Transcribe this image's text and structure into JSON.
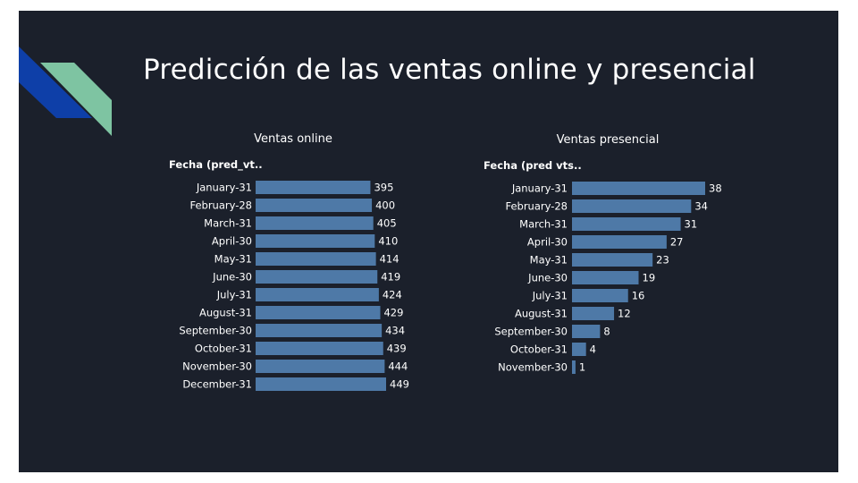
{
  "slide": {
    "title": "Predicción de las ventas online y presencial"
  },
  "colors": {
    "background": "#1b202b",
    "bar": "#4e79a7",
    "text": "#ffffff",
    "deco_blue": "#0e3fa8",
    "deco_green": "#7ec4a2"
  },
  "chart_data": [
    {
      "type": "bar",
      "orientation": "horizontal",
      "title": "Ventas online",
      "row_header": "Fecha (pred_vt..",
      "categories": [
        "January-31",
        "February-28",
        "March-31",
        "April-30",
        "May-31",
        "June-30",
        "July-31",
        "August-31",
        "September-30",
        "October-31",
        "November-30",
        "December-31"
      ],
      "values": [
        395,
        400,
        405,
        410,
        414,
        419,
        424,
        429,
        434,
        439,
        444,
        449
      ]
    },
    {
      "type": "bar",
      "orientation": "horizontal",
      "title": "Ventas presencial",
      "row_header": "Fecha (pred vts..",
      "categories": [
        "January-31",
        "February-28",
        "March-31",
        "April-30",
        "May-31",
        "June-30",
        "July-31",
        "August-31",
        "September-30",
        "October-31",
        "November-30"
      ],
      "values": [
        38,
        34,
        31,
        27,
        23,
        19,
        16,
        12,
        8,
        4,
        1
      ]
    }
  ]
}
